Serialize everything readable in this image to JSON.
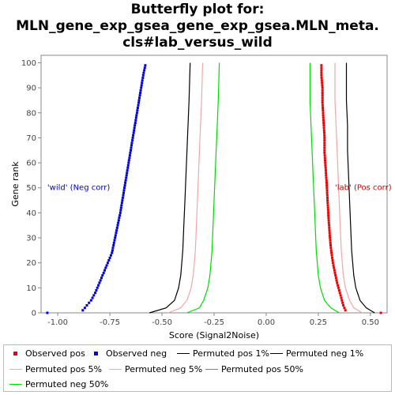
{
  "chart_data": {
    "type": "line",
    "title_lines": [
      "Butterfly plot for:",
      "MLN_gene_exp_gsea_gene_exp_gsea.MLN_meta.",
      "cls#lab_versus_wild"
    ],
    "xlabel": "Score (Signal2Noise)",
    "ylabel": "Gene rank",
    "xlim": [
      -1.08,
      0.58
    ],
    "ylim": [
      0,
      103
    ],
    "x_ticks": [
      -1.0,
      -0.75,
      -0.5,
      -0.25,
      0.0,
      0.25,
      0.5
    ],
    "x_tick_labels": [
      "-1.00",
      "-0.75",
      "-0.50",
      "-0.25",
      "0.00",
      "0.25",
      "0.50"
    ],
    "y_ticks": [
      0,
      10,
      20,
      30,
      40,
      50,
      60,
      70,
      80,
      90,
      100
    ],
    "y_tick_labels": [
      "0",
      "10",
      "20",
      "30",
      "40",
      "50",
      "60",
      "70",
      "80",
      "90",
      "100"
    ],
    "grid": false,
    "legend_position": "bottom",
    "annotations": [
      {
        "text": "'wild' (Neg corr)",
        "color": "#0000cc",
        "x": -1.05,
        "y": 50
      },
      {
        "text": "'lab' (Pos corr)",
        "color": "#cc0000",
        "x": 0.33,
        "y": 50
      }
    ],
    "series": [
      {
        "name": "Observed pos",
        "style": "points",
        "color": "#ee0000",
        "points": [
          [
            0.55,
            0
          ],
          [
            0.38,
            1
          ],
          [
            0.37,
            3
          ],
          [
            0.36,
            6
          ],
          [
            0.35,
            9
          ],
          [
            0.34,
            12
          ],
          [
            0.33,
            16
          ],
          [
            0.32,
            20
          ],
          [
            0.31,
            26
          ],
          [
            0.305,
            31
          ],
          [
            0.3,
            37
          ],
          [
            0.295,
            44
          ],
          [
            0.29,
            52
          ],
          [
            0.285,
            58
          ],
          [
            0.28,
            64
          ],
          [
            0.28,
            70
          ],
          [
            0.275,
            77
          ],
          [
            0.27,
            84
          ],
          [
            0.27,
            90
          ],
          [
            0.265,
            95
          ],
          [
            0.265,
            99
          ]
        ]
      },
      {
        "name": "Observed neg",
        "style": "points",
        "color": "#0000dd",
        "points": [
          [
            -1.05,
            0
          ],
          [
            -0.88,
            1
          ],
          [
            -0.86,
            3
          ],
          [
            -0.84,
            5
          ],
          [
            -0.82,
            8
          ],
          [
            -0.8,
            12
          ],
          [
            -0.78,
            16
          ],
          [
            -0.76,
            20
          ],
          [
            -0.74,
            24
          ],
          [
            -0.73,
            28
          ],
          [
            -0.72,
            32
          ],
          [
            -0.71,
            36
          ],
          [
            -0.7,
            40
          ],
          [
            -0.69,
            45
          ],
          [
            -0.68,
            50
          ],
          [
            -0.67,
            55
          ],
          [
            -0.66,
            60
          ],
          [
            -0.65,
            65
          ],
          [
            -0.64,
            70
          ],
          [
            -0.63,
            75
          ],
          [
            -0.62,
            80
          ],
          [
            -0.61,
            85
          ],
          [
            -0.6,
            90
          ],
          [
            -0.59,
            95
          ],
          [
            -0.58,
            99
          ]
        ]
      },
      {
        "name": "Permuted pos 1%",
        "style": "line",
        "color": "#000000",
        "points": [
          [
            0.52,
            0
          ],
          [
            0.48,
            2
          ],
          [
            0.45,
            5
          ],
          [
            0.43,
            10
          ],
          [
            0.42,
            15
          ],
          [
            0.41,
            25
          ],
          [
            0.405,
            35
          ],
          [
            0.4,
            45
          ],
          [
            0.395,
            55
          ],
          [
            0.39,
            65
          ],
          [
            0.39,
            75
          ],
          [
            0.385,
            85
          ],
          [
            0.385,
            100
          ]
        ]
      },
      {
        "name": "Permuted neg 1%",
        "style": "line",
        "color": "#000000",
        "points": [
          [
            -0.56,
            0
          ],
          [
            -0.48,
            2
          ],
          [
            -0.44,
            5
          ],
          [
            -0.42,
            10
          ],
          [
            -0.41,
            15
          ],
          [
            -0.4,
            25
          ],
          [
            -0.395,
            35
          ],
          [
            -0.39,
            45
          ],
          [
            -0.385,
            55
          ],
          [
            -0.38,
            65
          ],
          [
            -0.375,
            75
          ],
          [
            -0.37,
            85
          ],
          [
            -0.365,
            100
          ]
        ]
      },
      {
        "name": "Permuted pos 5%",
        "style": "line",
        "color": "#f0a8a8",
        "points": [
          [
            0.46,
            0
          ],
          [
            0.42,
            2
          ],
          [
            0.4,
            5
          ],
          [
            0.38,
            10
          ],
          [
            0.37,
            15
          ],
          [
            0.36,
            25
          ],
          [
            0.355,
            35
          ],
          [
            0.35,
            45
          ],
          [
            0.345,
            55
          ],
          [
            0.34,
            65
          ],
          [
            0.335,
            75
          ],
          [
            0.33,
            85
          ],
          [
            0.33,
            100
          ]
        ]
      },
      {
        "name": "Permuted neg 5%",
        "style": "line",
        "color": "#f0a8a8",
        "points": [
          [
            -0.47,
            0
          ],
          [
            -0.41,
            2
          ],
          [
            -0.38,
            5
          ],
          [
            -0.36,
            10
          ],
          [
            -0.35,
            15
          ],
          [
            -0.34,
            25
          ],
          [
            -0.335,
            35
          ],
          [
            -0.33,
            45
          ],
          [
            -0.325,
            55
          ],
          [
            -0.32,
            65
          ],
          [
            -0.315,
            75
          ],
          [
            -0.31,
            85
          ],
          [
            -0.305,
            100
          ]
        ]
      },
      {
        "name": "Permuted pos 50%",
        "style": "line",
        "color": "#00dd00",
        "points": [
          [
            0.35,
            0
          ],
          [
            0.31,
            2
          ],
          [
            0.28,
            5
          ],
          [
            0.26,
            10
          ],
          [
            0.25,
            15
          ],
          [
            0.24,
            25
          ],
          [
            0.235,
            35
          ],
          [
            0.23,
            45
          ],
          [
            0.225,
            55
          ],
          [
            0.22,
            65
          ],
          [
            0.215,
            75
          ],
          [
            0.21,
            85
          ],
          [
            0.21,
            100
          ]
        ]
      },
      {
        "name": "Permuted neg 50%",
        "style": "line",
        "color": "#00dd00",
        "points": [
          [
            -0.38,
            0
          ],
          [
            -0.32,
            2
          ],
          [
            -0.3,
            5
          ],
          [
            -0.28,
            10
          ],
          [
            -0.27,
            15
          ],
          [
            -0.26,
            25
          ],
          [
            -0.255,
            35
          ],
          [
            -0.25,
            45
          ],
          [
            -0.245,
            55
          ],
          [
            -0.24,
            65
          ],
          [
            -0.235,
            75
          ],
          [
            -0.23,
            85
          ],
          [
            -0.225,
            100
          ]
        ]
      }
    ]
  }
}
